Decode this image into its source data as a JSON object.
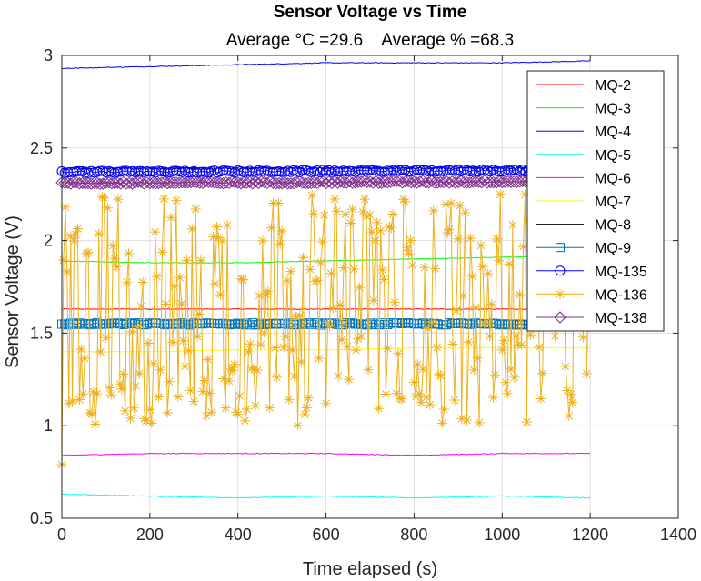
{
  "chart_data": {
    "type": "line",
    "title": "Sensor Voltage vs Time",
    "subtitle": "Average °C =29.6    Average % =68.3",
    "xlabel": "Time elapsed (s)",
    "ylabel": "Sensor Voltage (V)",
    "xlim": [
      0,
      1400
    ],
    "ylim": [
      0.5,
      3
    ],
    "xticks": [
      "0",
      "200",
      "400",
      "600",
      "800",
      "1000",
      "1200",
      "1400"
    ],
    "yticks": [
      "0.5",
      "1",
      "1.5",
      "2",
      "2.5",
      "3"
    ],
    "grid": true,
    "legend_position": "top-right",
    "series": [
      {
        "name": "MQ-2",
        "color": "#ff0000",
        "marker": "none",
        "x": [
          0,
          1200
        ],
        "y": [
          1.63,
          1.63
        ]
      },
      {
        "name": "MQ-3",
        "color": "#00ff00",
        "marker": "none",
        "x": [
          0,
          200,
          400,
          600,
          800,
          1000,
          1200
        ],
        "y": [
          1.89,
          1.88,
          1.88,
          1.89,
          1.9,
          1.91,
          1.92
        ]
      },
      {
        "name": "MQ-4",
        "color": "#0000ff",
        "marker": "none",
        "x": [
          0,
          200,
          400,
          600,
          800,
          1000,
          1200
        ],
        "y": [
          2.93,
          2.94,
          2.95,
          2.96,
          2.96,
          2.96,
          2.97
        ]
      },
      {
        "name": "MQ-5",
        "color": "#00ffff",
        "marker": "none",
        "x": [
          0,
          200,
          400,
          600,
          800,
          1000,
          1200
        ],
        "y": [
          0.63,
          0.62,
          0.61,
          0.62,
          0.61,
          0.62,
          0.61
        ]
      },
      {
        "name": "MQ-6",
        "color": "#ff00ff",
        "marker": "none",
        "x": [
          0,
          200,
          400,
          600,
          800,
          1000,
          1200
        ],
        "y": [
          0.84,
          0.85,
          0.85,
          0.85,
          0.84,
          0.85,
          0.85
        ]
      },
      {
        "name": "MQ-7",
        "color": "#ffff00",
        "marker": "none",
        "x": [
          0,
          200,
          400,
          600,
          800,
          1000,
          1200
        ],
        "y": [
          1.4,
          1.4,
          1.41,
          1.41,
          1.42,
          1.42,
          1.42
        ]
      },
      {
        "name": "MQ-8",
        "color": "#000000",
        "marker": "none",
        "x": [
          0,
          200,
          400,
          600,
          800,
          1000,
          1200
        ],
        "y": [
          2.39,
          2.39,
          2.39,
          2.39,
          2.39,
          2.39,
          2.39
        ]
      },
      {
        "name": "MQ-9",
        "color": "#0072bd",
        "marker": "square",
        "x": [
          0,
          1200
        ],
        "y": [
          1.55,
          1.55
        ]
      },
      {
        "name": "MQ-135",
        "color": "#0000ff",
        "marker": "circle",
        "x": [
          0,
          1200
        ],
        "y": [
          2.37,
          2.38
        ]
      },
      {
        "name": "MQ-136",
        "color": "#edb120",
        "marker": "asterisk",
        "x": [
          0,
          1200
        ],
        "y_range": [
          1.0,
          2.25
        ],
        "y_mean": 1.6
      },
      {
        "name": "MQ-138",
        "color": "#7e2f8e",
        "marker": "diamond",
        "x": [
          0,
          1200
        ],
        "y": [
          2.31,
          2.32
        ]
      }
    ]
  }
}
